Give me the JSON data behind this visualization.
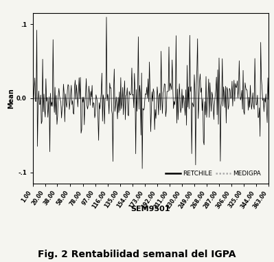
{
  "title": "Fig. 2 Rentabilidad semanal del IGPA",
  "ylabel": "Mean",
  "xlabel": "SEM9501",
  "ylim": [
    -0.115,
    0.115
  ],
  "yticks": [
    0.1,
    0.0,
    -0.1
  ],
  "ytick_labels": [
    ".1",
    "0.0",
    "-.1"
  ],
  "xticks": [
    1,
    20,
    38,
    58,
    78,
    97,
    116,
    135,
    154,
    173,
    192,
    211,
    230,
    249,
    268,
    287,
    306,
    325,
    344,
    363
  ],
  "xtick_labels": [
    "1.00",
    "20.00",
    "38.00",
    "58.00",
    "78.00",
    "97.00",
    "116.00",
    "135.00",
    "154.00",
    "173.00",
    "192.00",
    "211.00",
    "230.00",
    "249.00",
    "268.00",
    "287.00",
    "306.00",
    "325.00",
    "344.00",
    "363.00"
  ],
  "n_points": 363,
  "retchile_color": "#000000",
  "medigpa_color": "#aaaaaa",
  "refline_color": "#bbbbbb",
  "bg_color": "#f5f5f0",
  "legend_labels": [
    "RETCHILE",
    "MEDIGPA"
  ],
  "legend_fontsize": 6.5,
  "tick_fontsize": 6,
  "ylabel_fontsize": 7,
  "xlabel_fontsize": 8,
  "title_fontsize": 10
}
